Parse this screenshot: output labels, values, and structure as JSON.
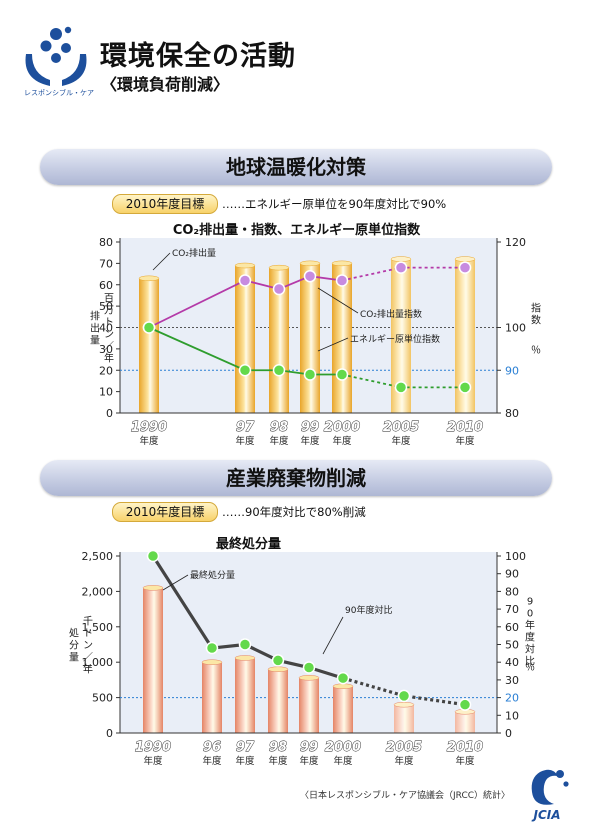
{
  "header": {
    "logo_caption": "レスポンシブル・ケア",
    "title": "環境保全の活動",
    "subtitle": "〈環境負荷削減〉",
    "brand_color": "#1d4f9c"
  },
  "section1": {
    "banner": "地球温暖化対策",
    "target_badge": "2010年度目標",
    "target_text": "……エネルギー原単位を90年度対比で90%"
  },
  "section2": {
    "banner": "産業廃棄物削減",
    "target_badge": "2010年度目標",
    "target_text": "……90年度対比で80%削減"
  },
  "footer": {
    "credit": "〈日本レスポンシブル・ケア協議会（JRCC）統計〉",
    "logo_text": "JCIA"
  },
  "chart_data": [
    {
      "type": "bar",
      "title": "CO₂排出量・指数、エネルギー原単位指数",
      "categories": [
        "1990",
        "97",
        "98",
        "99",
        "2000",
        "2005",
        "2010"
      ],
      "category_suffix": "年度",
      "ylabel_left": "排出量 百万トン／年",
      "ylabel_right": "指数 ％",
      "ylim_left": [
        0,
        80
      ],
      "yticks_left": [
        0,
        10,
        20,
        30,
        40,
        50,
        60,
        70,
        80
      ],
      "ylim_right": [
        80,
        120
      ],
      "yticks_right": [
        80,
        90,
        100,
        120
      ],
      "target_line_right": 90,
      "bar_series": {
        "name": "CO₂排出量",
        "values": [
          63,
          69,
          68,
          70,
          70,
          72,
          72
        ],
        "projected_from_index": 5,
        "color": "#f2b531"
      },
      "line_series": [
        {
          "name": "CO₂排出量指数",
          "values": [
            100,
            111,
            109,
            112,
            111,
            114,
            114
          ],
          "projected_from_index": 4,
          "color": "#b43aa8",
          "marker": "#c78be0"
        },
        {
          "name": "エネルギー原単位指数",
          "values": [
            100,
            90,
            90,
            89,
            89,
            86,
            86
          ],
          "projected_from_index": 4,
          "color": "#2e9d2e",
          "marker": "#63d94b"
        }
      ],
      "annotations": [
        "CO₂排出量",
        "CO₂排出量指数",
        "エネルギー原単位指数"
      ]
    },
    {
      "type": "bar",
      "title": "最終処分量",
      "categories": [
        "1990",
        "96",
        "97",
        "98",
        "99",
        "2000",
        "2005",
        "2010"
      ],
      "category_suffix": "年度",
      "ylabel_left": "処分量 千トン／年",
      "ylabel_right": "90年度対比 ％",
      "ylim_left": [
        0,
        2500
      ],
      "yticks_left": [
        "0",
        "500",
        "1,000",
        "1,500",
        "2,000",
        "2,500"
      ],
      "ylim_right": [
        0,
        100
      ],
      "yticks_right": [
        0,
        10,
        20,
        30,
        40,
        50,
        60,
        70,
        80,
        90,
        100
      ],
      "target_line_right": 20,
      "bar_series": {
        "name": "最終処分量",
        "values": [
          2050,
          1000,
          1060,
          900,
          780,
          660,
          400,
          300
        ],
        "projected_from_index": 6,
        "color": "#f2a98c"
      },
      "line_series": [
        {
          "name": "90年度対比",
          "values": [
            100,
            48,
            50,
            41,
            37,
            31,
            21,
            16
          ],
          "projected_from_index": 5,
          "color": "#444444",
          "marker": "#63d94b"
        }
      ],
      "annotations": [
        "最終処分量",
        "90年度対比"
      ]
    }
  ]
}
